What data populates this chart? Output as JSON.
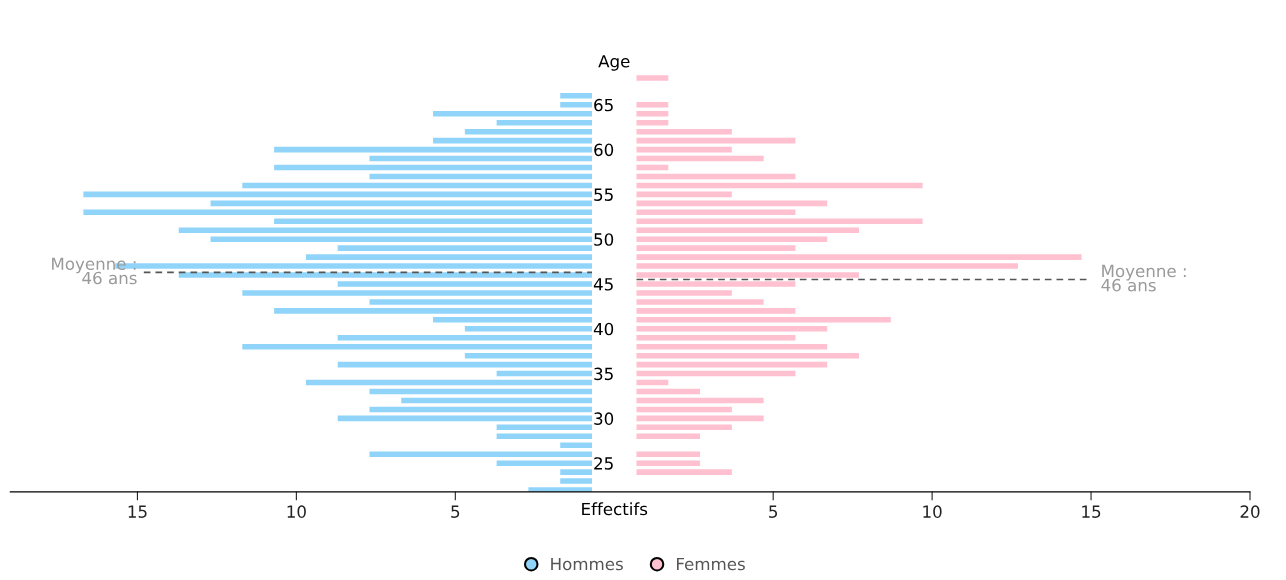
{
  "chart_data": {
    "type": "bar",
    "orientation": "horizontal",
    "ylabel": "Age",
    "xlabel": "Effectifs",
    "x": [
      68,
      67,
      66,
      65,
      64,
      63,
      62,
      61,
      60,
      59,
      58,
      57,
      56,
      55,
      54,
      53,
      52,
      51,
      50,
      49,
      48,
      47,
      46,
      45,
      44,
      43,
      42,
      41,
      40,
      39,
      38,
      37,
      36,
      35,
      34,
      33,
      32,
      31,
      30,
      29,
      28,
      27,
      26,
      25,
      24,
      23,
      22
    ],
    "series": [
      {
        "name": "Hommes",
        "color": "#90d4fa",
        "values": [
          null,
          null,
          -1,
          -1,
          -5,
          -3,
          -4,
          -5,
          -10,
          -7,
          -10,
          -7,
          -11,
          -16,
          -12,
          -16,
          -10,
          -13,
          -12,
          -8,
          -9,
          -15,
          -13,
          -8,
          -11,
          -7,
          -10,
          -5,
          -4,
          -8,
          -11,
          -4,
          -8,
          -3,
          -9,
          -7,
          -6,
          -7,
          -8,
          -3,
          -3,
          -1,
          -7,
          -3,
          -1,
          -1,
          -2
        ],
        "base": [
          null,
          null,
          -0.7,
          -0.7,
          -0.7,
          -0.7,
          -0.7,
          -0.7,
          -0.7,
          -0.7,
          -0.7,
          -0.7,
          -0.7,
          -0.7,
          -0.7,
          -0.7,
          -0.7,
          -0.7,
          -0.7,
          -0.7,
          -0.7,
          -0.7,
          -0.7,
          -0.7,
          -0.7,
          -0.7,
          -0.7,
          -0.7,
          -0.7,
          -0.7,
          -0.7,
          -0.7,
          -0.7,
          -0.7,
          -0.7,
          -0.7,
          -0.7,
          -0.7,
          -0.7,
          -0.7,
          -0.7,
          -0.7,
          -0.7,
          -0.7,
          -0.7,
          -0.7,
          -0.7
        ]
      },
      {
        "name": "Femmes",
        "color": "#ffc0cf",
        "values": [
          1,
          null,
          null,
          1,
          1,
          1,
          3,
          5,
          3,
          4,
          1,
          5,
          9,
          3,
          6,
          5,
          9,
          7,
          6,
          5,
          14,
          12,
          7,
          5,
          3,
          4,
          5,
          8,
          6,
          5,
          6,
          7,
          6,
          5,
          1,
          2,
          4,
          3,
          4,
          3,
          2,
          null,
          2,
          2,
          3,
          null,
          null
        ],
        "base": [
          0.7,
          null,
          null,
          0.7,
          0.7,
          0.7,
          0.7,
          0.7,
          0.7,
          0.7,
          0.7,
          0.7,
          0.7,
          0.7,
          0.7,
          0.7,
          0.7,
          0.7,
          0.7,
          0.7,
          0.7,
          0.7,
          0.7,
          0.7,
          0.7,
          0.7,
          0.7,
          0.7,
          0.7,
          0.7,
          0.7,
          0.7,
          0.7,
          0.7,
          0.7,
          0.7,
          0.7,
          0.7,
          0.7,
          0.7,
          0.7,
          null,
          0.7,
          0.7,
          0.7,
          null,
          null
        ]
      }
    ],
    "xlim": [
      -19,
      20
    ],
    "xticks": [
      {
        "value": -15,
        "label": "15"
      },
      {
        "value": -10,
        "label": "10"
      },
      {
        "value": -5,
        "label": "5"
      },
      5,
      10,
      15,
      20
    ],
    "ylim": [
      21.8,
      68.8
    ],
    "yticks": [
      25,
      30,
      35,
      40,
      45,
      50,
      55,
      60,
      65
    ],
    "ref_lines": [
      {
        "axis": "y",
        "value": 46.3,
        "label": "Moyenne :\n46 ans",
        "color": "#555555",
        "line_style": "dashed"
      },
      {
        "axis": "y",
        "value": 45.5,
        "label": "Moyenne :\n46 ans",
        "color": "#555555",
        "line_style": "dashed"
      }
    ],
    "grid": false,
    "legend": "bottom"
  }
}
